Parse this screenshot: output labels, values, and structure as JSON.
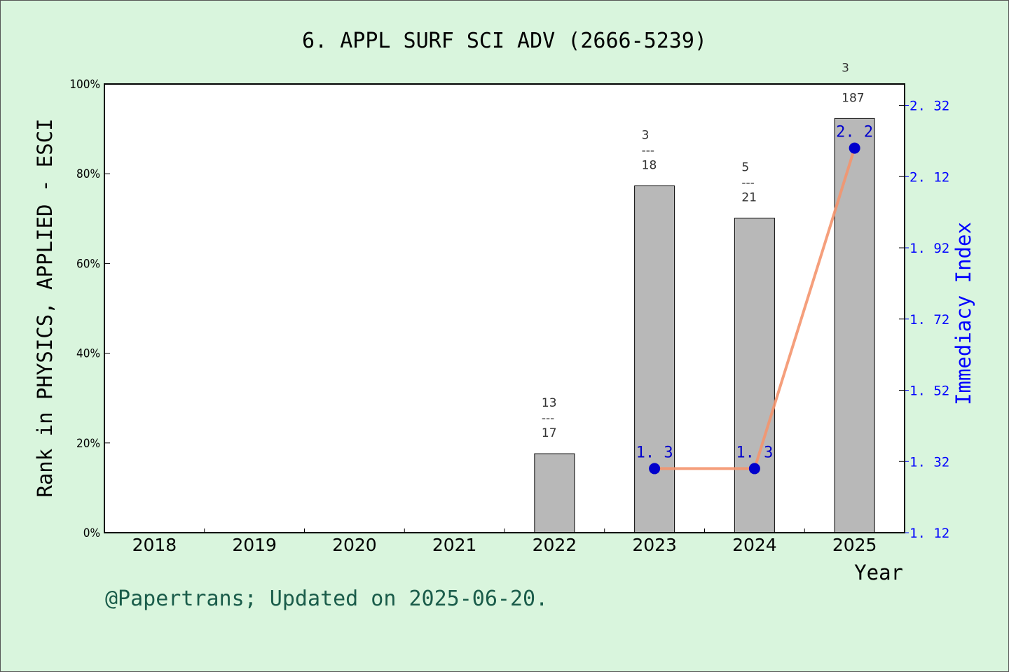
{
  "title": "6. APPL SURF SCI ADV (2666-5239)",
  "footer": "@Papertrans; Updated on 2025-06-20.",
  "colors": {
    "background": "#d9f5dd",
    "bar": "#b8b8b8",
    "line": "#f4956e",
    "point": "#0000cc",
    "right_axis": "#0000ff",
    "footer": "#1a5c4a"
  },
  "chart_data": {
    "type": "bar",
    "xlabel": "Year",
    "ylabel_left": "Rank in PHYSICS, APPLIED - ESCI",
    "ylabel_right": "Immediacy Index",
    "categories": [
      "2018",
      "2019",
      "2020",
      "2021",
      "2022",
      "2023",
      "2024",
      "2025"
    ],
    "ylim_left": [
      0,
      100
    ],
    "yticks_left": [
      "0%",
      "20%",
      "40%",
      "60%",
      "80%",
      "100%"
    ],
    "ylim_right": [
      1.12,
      2.38
    ],
    "yticks_right": [
      "1.12",
      "1.32",
      "1.52",
      "1.72",
      "1.92",
      "2.12",
      "2.32"
    ],
    "bars": [
      {
        "year": "2022",
        "value": 17.6,
        "numerator": "13",
        "denominator": "17",
        "dash": "---"
      },
      {
        "year": "2023",
        "value": 77.3,
        "numerator": "3",
        "denominator": "18",
        "dash": "---"
      },
      {
        "year": "2024",
        "value": 70.1,
        "numerator": "5",
        "denominator": "21",
        "dash": "---"
      },
      {
        "year": "2025",
        "value": 92.3,
        "numerator": "3",
        "denominator": "187",
        "dash": "---"
      }
    ],
    "series": [
      {
        "name": "Immediacy Index",
        "type": "line",
        "points": [
          {
            "year": "2023",
            "value": 1.3,
            "label": "1.3"
          },
          {
            "year": "2024",
            "value": 1.3,
            "label": "1.3"
          },
          {
            "year": "2025",
            "value": 2.2,
            "label": "2.2"
          }
        ]
      }
    ]
  }
}
